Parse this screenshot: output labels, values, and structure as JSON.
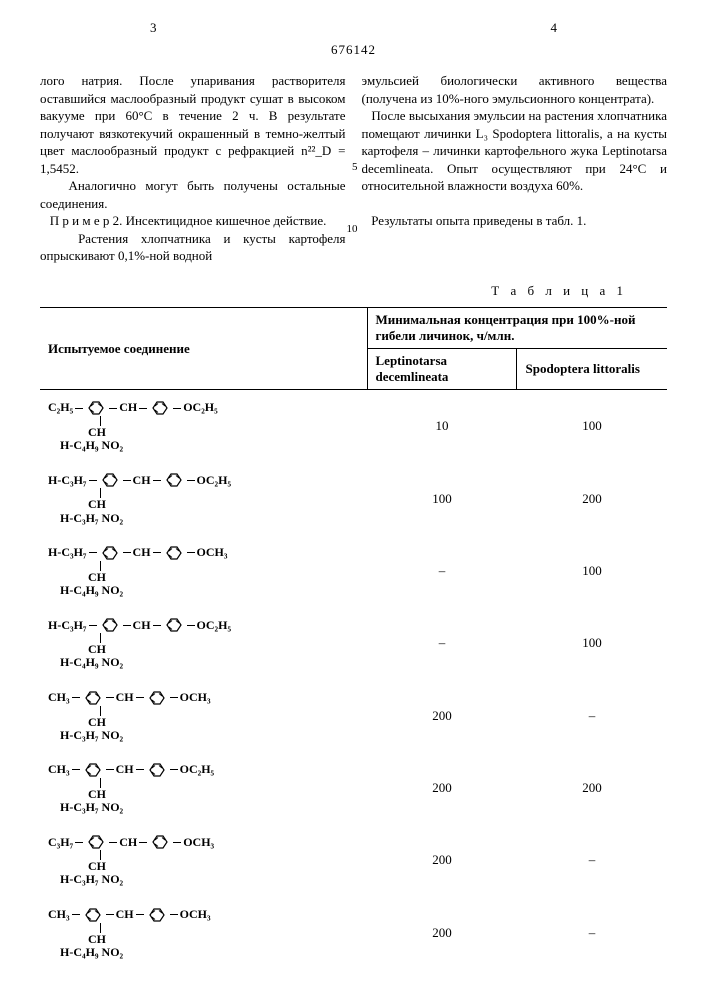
{
  "page_left_num": "3",
  "page_right_num": "4",
  "doc_number": "676142",
  "left_col_p1": "лого натрия. После упаривания растворителя оставшийся маслообразный продукт сушат в высоком вакууме при 60°С в течение 2 ч. В результате получают вязкотекучий окрашенный в темно-желтый цвет маслообразный продукт с рефракцией n²²_D = 1,5452.",
  "left_col_p2": "Аналогично могут быть получены остальные соединения.",
  "left_col_p3": "П р и м е р 2. Инсектицидное кишечное действие.",
  "left_col_p4": "Растения хлопчатника и кусты картофеля опрыскивают 0,1%-ной водной",
  "right_col_p1": "эмульсией биологически активного вещества (получена из 10%-ного эмульсионного концентрата).",
  "right_col_p2": "После высыхания эмульсии на растения хлопчатника помещают личинки L₃ Spodoptera littoralis, а на кусты картофеля – личинки картофельного жука Leptinotarsa decemlineata. Опыт осуществляют при 24°С и относительной влажности воздуха 60%.",
  "right_col_p3": "Результаты опыта приведены в табл. 1.",
  "line_num_5": "5",
  "line_num_10": "10",
  "table_title": "Т а б л и ц а 1",
  "table": {
    "header_compound": "Испытуемое соединение",
    "header_conc": "Минимальная концентрация при 100%-ной гибели личинок, ч/млн.",
    "header_lept": "Leptinotarsa decemlineata",
    "header_spod": "Spodoptera littoralis",
    "rows": [
      {
        "left_sub": "C₂H₅",
        "right_sub": "OC₂H₅",
        "bottom": "H-C₄H₉   NO₂",
        "lept": "10",
        "spod": "100"
      },
      {
        "left_sub": "H-C₃H₇",
        "right_sub": "OC₂H₅",
        "bottom": "H-C₃H₇   NO₂",
        "lept": "100",
        "spod": "200"
      },
      {
        "left_sub": "H-C₃H₇",
        "right_sub": "OCH₃",
        "bottom": "H-C₄H₉   NO₂",
        "lept": "–",
        "spod": "100"
      },
      {
        "left_sub": "H-C₃H₇",
        "right_sub": "OC₂H₅",
        "bottom": "H-C₄H₉   NO₂",
        "lept": "–",
        "spod": "100"
      },
      {
        "left_sub": "CH₃",
        "right_sub": "OCH₃",
        "bottom": "H-C₃H₇   NO₂",
        "lept": "200",
        "spod": "–"
      },
      {
        "left_sub": "CH₃",
        "right_sub": "OC₂H₅",
        "bottom": "H-C₃H₇   NO₂",
        "lept": "200",
        "spod": "200"
      },
      {
        "left_sub": "C₃H₇",
        "right_sub": "OCH₃",
        "bottom": "H-C₃H₇   NO₂",
        "lept": "200",
        "spod": "–"
      },
      {
        "left_sub": "CH₃",
        "right_sub": "OCH₃",
        "bottom": "H-C₄H₉   NO₂",
        "lept": "200",
        "spod": "–"
      }
    ]
  }
}
